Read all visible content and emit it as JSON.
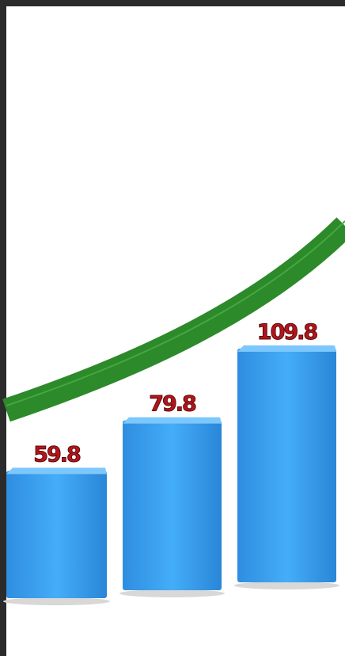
{
  "chart_data": {
    "type": "bar",
    "values": [
      59.8,
      79.8,
      109.8
    ],
    "color": "#3aa2f2"
  }
}
